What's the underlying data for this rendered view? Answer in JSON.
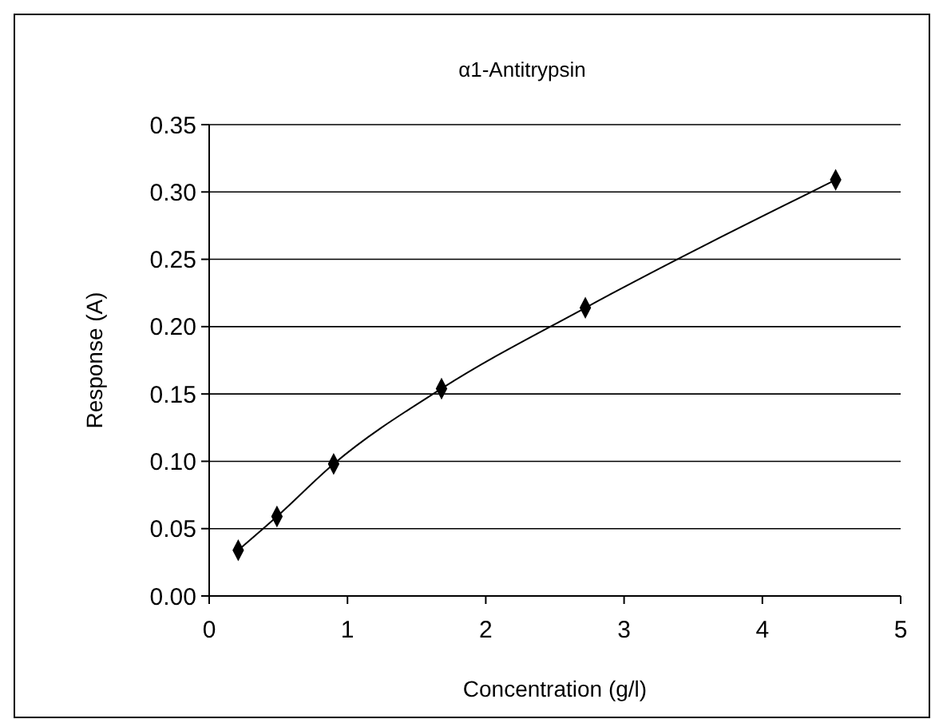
{
  "chart_data": {
    "type": "line",
    "title": "α1-Antitrypsin",
    "xlabel": "Concentration (g/l)",
    "ylabel": "Response (A)",
    "series": [
      {
        "color": "#000000",
        "x": [
          0.21,
          0.49,
          0.9,
          1.68,
          2.72,
          4.53
        ],
        "values": [
          0.034,
          0.059,
          0.098,
          0.154,
          0.214,
          0.309
        ]
      }
    ],
    "xlim": [
      0,
      5
    ],
    "xticks": [
      0,
      1,
      2,
      3,
      4,
      5
    ],
    "ylim": [
      0,
      0.35
    ],
    "yticks": [
      {
        "value": 0,
        "label": "0.00"
      },
      {
        "value": 0.05,
        "label": "0.05"
      },
      {
        "value": 0.1,
        "label": "0.10"
      },
      {
        "value": 0.15,
        "label": "0.15"
      },
      {
        "value": 0.2,
        "label": "0.20"
      },
      {
        "value": 0.25,
        "label": "0.25"
      },
      {
        "value": 0.3,
        "label": "0.30"
      },
      {
        "value": 0.35,
        "label": "0.35"
      }
    ],
    "grid": "y",
    "marker": "diamond",
    "line_style": "solid"
  }
}
